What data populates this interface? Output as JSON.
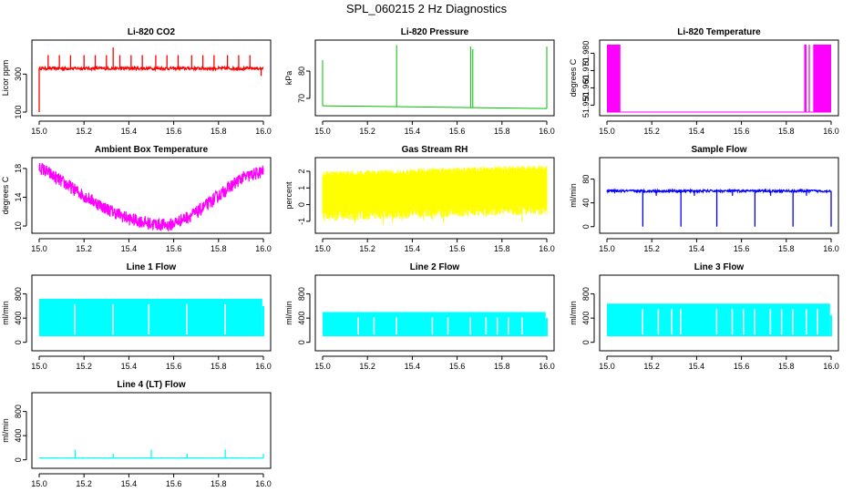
{
  "page_title": "SPL_060215  2 Hz Diagnostics",
  "chart_data": [
    {
      "type": "line",
      "title": "Li-820 CO2",
      "ylabel": "Licor ppm",
      "color": "#ff0000",
      "x_ticks": [
        "15.0",
        "15.2",
        "15.4",
        "15.6",
        "15.8",
        "16.0"
      ],
      "y_ticks": [
        {
          "value": 100,
          "label": "100"
        },
        {
          "value": 300,
          "label": "300"
        }
      ],
      "xlim": [
        15.0,
        16.0
      ],
      "ylim": [
        100,
        460
      ],
      "series": [
        {
          "name": "CO2",
          "kind": "baseline_spikes",
          "baseline": 330,
          "noise": 8,
          "spikes": [
            {
              "x": 15.0,
              "y": 100
            },
            {
              "x": 15.04,
              "y": 400
            },
            {
              "x": 15.09,
              "y": 400
            },
            {
              "x": 15.14,
              "y": 400
            },
            {
              "x": 15.2,
              "y": 400
            },
            {
              "x": 15.25,
              "y": 400
            },
            {
              "x": 15.3,
              "y": 400
            },
            {
              "x": 15.33,
              "y": 440
            },
            {
              "x": 15.36,
              "y": 400
            },
            {
              "x": 15.41,
              "y": 400
            },
            {
              "x": 15.46,
              "y": 400
            },
            {
              "x": 15.52,
              "y": 400
            },
            {
              "x": 15.57,
              "y": 400
            },
            {
              "x": 15.62,
              "y": 400
            },
            {
              "x": 15.68,
              "y": 400
            },
            {
              "x": 15.73,
              "y": 400
            },
            {
              "x": 15.78,
              "y": 400
            },
            {
              "x": 15.84,
              "y": 400
            },
            {
              "x": 15.89,
              "y": 400
            },
            {
              "x": 15.94,
              "y": 400
            },
            {
              "x": 15.99,
              "y": 290
            }
          ]
        }
      ]
    },
    {
      "type": "line",
      "title": "Li-820 Pressure",
      "ylabel": "kPa",
      "color": "#00c000",
      "x_ticks": [
        "15.0",
        "15.2",
        "15.4",
        "15.6",
        "15.8",
        "16.0"
      ],
      "y_ticks": [
        {
          "value": 70,
          "label": "70"
        },
        {
          "value": 80,
          "label": "80"
        }
      ],
      "xlim": [
        15.0,
        16.0
      ],
      "ylim": [
        65,
        90
      ],
      "series": [
        {
          "name": "Pressure",
          "kind": "step_drift",
          "start": 67.3,
          "end": 66.3,
          "spikes": [
            {
              "x": 15.0,
              "y": 84
            },
            {
              "x": 15.33,
              "y": 89.5
            },
            {
              "x": 15.66,
              "y": 89
            },
            {
              "x": 15.67,
              "y": 88
            },
            {
              "x": 16.0,
              "y": 89
            }
          ]
        }
      ]
    },
    {
      "type": "line",
      "title": "Li-820 Temperature",
      "ylabel": "degrees C",
      "color": "#ff00ff",
      "x_ticks": [
        "15.0",
        "15.2",
        "15.4",
        "15.6",
        "15.8",
        "16.0"
      ],
      "y_ticks": [
        {
          "value": 51.95,
          "label": "51.950"
        },
        {
          "value": 51.96,
          "label": "51.960"
        },
        {
          "value": 51.97,
          "label": "51.970"
        },
        {
          "value": 51.98,
          "label": "51.980"
        }
      ],
      "xlim": [
        15.0,
        16.0
      ],
      "ylim": [
        51.946,
        51.9855
      ],
      "series": [
        {
          "name": "Temperature",
          "kind": "oscillation_band",
          "low": 51.946,
          "high": 51.985,
          "bands": [
            [
              15.0,
              15.06
            ],
            [
              15.88,
              15.89
            ],
            [
              15.9,
              15.905
            ],
            [
              15.92,
              16.0
            ]
          ]
        }
      ]
    },
    {
      "type": "line",
      "title": "Ambient Box Temperature",
      "ylabel": "degrees C",
      "color": "#ff00ff",
      "x_ticks": [
        "15.0",
        "15.2",
        "15.4",
        "15.6",
        "15.8",
        "16.0"
      ],
      "y_ticks": [
        {
          "value": 10,
          "label": "10"
        },
        {
          "value": 14,
          "label": "14"
        },
        {
          "value": 18,
          "label": "18"
        }
      ],
      "xlim": [
        15.0,
        16.0
      ],
      "ylim": [
        9.5,
        19
      ],
      "series": [
        {
          "name": "Box Temp",
          "kind": "noisy_curve",
          "noise": 0.9,
          "points": [
            [
              15.0,
              18.2
            ],
            [
              15.1,
              16.2
            ],
            [
              15.2,
              14.2
            ],
            [
              15.3,
              12.4
            ],
            [
              15.4,
              11.0
            ],
            [
              15.5,
              10.3
            ],
            [
              15.58,
              10.1
            ],
            [
              15.7,
              11.8
            ],
            [
              15.8,
              14.2
            ],
            [
              15.9,
              16.6
            ],
            [
              16.0,
              17.6
            ]
          ]
        }
      ]
    },
    {
      "type": "line",
      "title": "Gas Stream RH",
      "ylabel": "percent",
      "color": "#ffff00",
      "x_ticks": [
        "15.0",
        "15.2",
        "15.4",
        "15.6",
        "15.8",
        "16.0"
      ],
      "y_ticks": [
        {
          "value": -1,
          "label": "-1"
        },
        {
          "value": 0,
          "label": "0"
        },
        {
          "value": 1,
          "label": "1"
        },
        {
          "value": 2,
          "label": "2"
        }
      ],
      "xlim": [
        15.0,
        16.0
      ],
      "ylim": [
        -1.5,
        2.6
      ],
      "series": [
        {
          "name": "RH",
          "kind": "noise_band",
          "top_start": 2.0,
          "top_end": 2.4,
          "bottom_start": -0.4,
          "bottom_end": 0.0
        }
      ]
    },
    {
      "type": "line",
      "title": "Sample Flow",
      "ylabel": "ml/min",
      "color": "#0000ff",
      "x_ticks": [
        "15.0",
        "15.2",
        "15.4",
        "15.6",
        "15.8",
        "16.0"
      ],
      "y_ticks": [
        {
          "value": 0,
          "label": "0"
        },
        {
          "value": 40,
          "label": "40"
        },
        {
          "value": 80,
          "label": "80"
        }
      ],
      "xlim": [
        15.0,
        16.0
      ],
      "ylim": [
        -5,
        110
      ],
      "series": [
        {
          "name": "Sample Flow",
          "kind": "baseline_spikes",
          "baseline": 60,
          "noise": 2,
          "spikes": [
            {
              "x": 15.16,
              "y": 0
            },
            {
              "x": 15.22,
              "y": 52
            },
            {
              "x": 15.33,
              "y": 0
            },
            {
              "x": 15.39,
              "y": 52
            },
            {
              "x": 15.49,
              "y": 0
            },
            {
              "x": 15.56,
              "y": 52
            },
            {
              "x": 15.66,
              "y": 0
            },
            {
              "x": 15.73,
              "y": 52
            },
            {
              "x": 15.83,
              "y": 0
            },
            {
              "x": 15.89,
              "y": 52
            },
            {
              "x": 16.0,
              "y": 0
            }
          ]
        }
      ]
    },
    {
      "type": "line",
      "title": "Line 1 Flow",
      "ylabel": "ml/min",
      "color": "#00ffff",
      "x_ticks": [
        "15.0",
        "15.2",
        "15.4",
        "15.6",
        "15.8",
        "16.0"
      ],
      "y_ticks": [
        {
          "value": 0,
          "label": "0"
        },
        {
          "value": 400,
          "label": "400"
        },
        {
          "value": 800,
          "label": "800"
        }
      ],
      "xlim": [
        15.0,
        16.0
      ],
      "ylim": [
        -80,
        1050
      ],
      "series": [
        {
          "name": "Line 1",
          "kind": "filled_band",
          "low": 100,
          "high": 720,
          "right_high": 600,
          "gaps": [
            15.16,
            15.33,
            15.49,
            15.66,
            15.83
          ]
        }
      ]
    },
    {
      "type": "line",
      "title": "Line 2 Flow",
      "ylabel": "ml/min",
      "color": "#00ffff",
      "x_ticks": [
        "15.0",
        "15.2",
        "15.4",
        "15.6",
        "15.8",
        "16.0"
      ],
      "y_ticks": [
        {
          "value": 0,
          "label": "0"
        },
        {
          "value": 400,
          "label": "400"
        },
        {
          "value": 800,
          "label": "800"
        }
      ],
      "xlim": [
        15.0,
        16.0
      ],
      "ylim": [
        -80,
        1050
      ],
      "series": [
        {
          "name": "Line 2",
          "kind": "filled_band",
          "low": 100,
          "high": 500,
          "right_high": 400,
          "gaps": [
            15.16,
            15.23,
            15.33,
            15.49,
            15.56,
            15.66,
            15.73,
            15.78,
            15.83,
            15.89
          ]
        }
      ]
    },
    {
      "type": "line",
      "title": "Line 3 Flow",
      "ylabel": "ml/min",
      "color": "#00ffff",
      "x_ticks": [
        "15.0",
        "15.2",
        "15.4",
        "15.6",
        "15.8",
        "16.0"
      ],
      "y_ticks": [
        {
          "value": 0,
          "label": "0"
        },
        {
          "value": 400,
          "label": "400"
        },
        {
          "value": 800,
          "label": "800"
        }
      ],
      "xlim": [
        15.0,
        16.0
      ],
      "ylim": [
        -80,
        1050
      ],
      "series": [
        {
          "name": "Line 3",
          "kind": "filled_band",
          "low": 100,
          "high": 640,
          "right_high": 450,
          "gaps": [
            15.16,
            15.23,
            15.29,
            15.33,
            15.49,
            15.56,
            15.61,
            15.66,
            15.73,
            15.78,
            15.83,
            15.89,
            15.94
          ]
        }
      ]
    },
    {
      "type": "line",
      "title": "Line 4 (LT) Flow",
      "ylabel": "ml/min",
      "color": "#00ffff",
      "x_ticks": [
        "15.0",
        "15.2",
        "15.4",
        "15.6",
        "15.8",
        "16.0"
      ],
      "y_ticks": [
        {
          "value": 0,
          "label": "0"
        },
        {
          "value": 400,
          "label": "400"
        },
        {
          "value": 800,
          "label": "800"
        }
      ],
      "xlim": [
        15.0,
        16.0
      ],
      "ylim": [
        -80,
        1050
      ],
      "series": [
        {
          "name": "Line 4",
          "kind": "baseline_spikes",
          "baseline": 30,
          "noise": 3,
          "spikes": [
            {
              "x": 15.16,
              "y": 170
            },
            {
              "x": 15.33,
              "y": 100
            },
            {
              "x": 15.5,
              "y": 170
            },
            {
              "x": 15.66,
              "y": 100
            },
            {
              "x": 15.83,
              "y": 170
            },
            {
              "x": 16.0,
              "y": 100
            }
          ]
        }
      ]
    }
  ]
}
